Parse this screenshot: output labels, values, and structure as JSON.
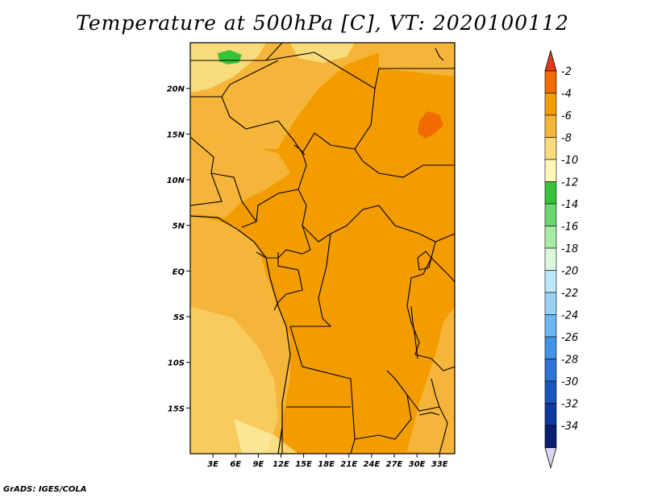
{
  "title": "Temperature at 500hPa [C], VT: 2020100112",
  "credit": "GrADS: IGES/COLA",
  "map": {
    "lat_ticks": [
      "20N",
      "15N",
      "10N",
      "5N",
      "EQ",
      "5S",
      "10S",
      "15S"
    ],
    "lat_values": [
      20,
      15,
      10,
      5,
      0,
      -5,
      -10,
      -15
    ],
    "lon_ticks": [
      "3E",
      "6E",
      "9E",
      "12E",
      "15E",
      "18E",
      "21E",
      "24E",
      "27E",
      "30E",
      "33E"
    ],
    "lon_values": [
      3,
      6,
      9,
      12,
      15,
      18,
      21,
      24,
      27,
      30,
      33
    ],
    "lon_range": [
      0,
      35
    ],
    "lat_range": [
      -20,
      25
    ]
  },
  "colorbar": {
    "labels": [
      "-2",
      "-4",
      "-6",
      "-8",
      "-10",
      "-12",
      "-14",
      "-16",
      "-18",
      "-20",
      "-22",
      "-24",
      "-26",
      "-28",
      "-30",
      "-32",
      "-34"
    ],
    "colors": [
      "#e03a18",
      "#f06b00",
      "#f39c00",
      "#f5b53a",
      "#f8dc7c",
      "#fef8bb",
      "#36c33a",
      "#6ad86e",
      "#a5eda6",
      "#dcf7dc",
      "#bde7f9",
      "#9ad1f7",
      "#6cb7f1",
      "#4193e8",
      "#2e74d6",
      "#1b55bf",
      "#0d3aa0",
      "#0a1d72",
      "#d8d8ef"
    ]
  },
  "colors": {
    "c_-8_-6": "#f5b53a",
    "c_-6_-4": "#f39c00",
    "c_-10_-8": "#f8dc7c",
    "c_-4_-2": "#f06b00",
    "c_-14_-12": "#36c33a"
  }
}
